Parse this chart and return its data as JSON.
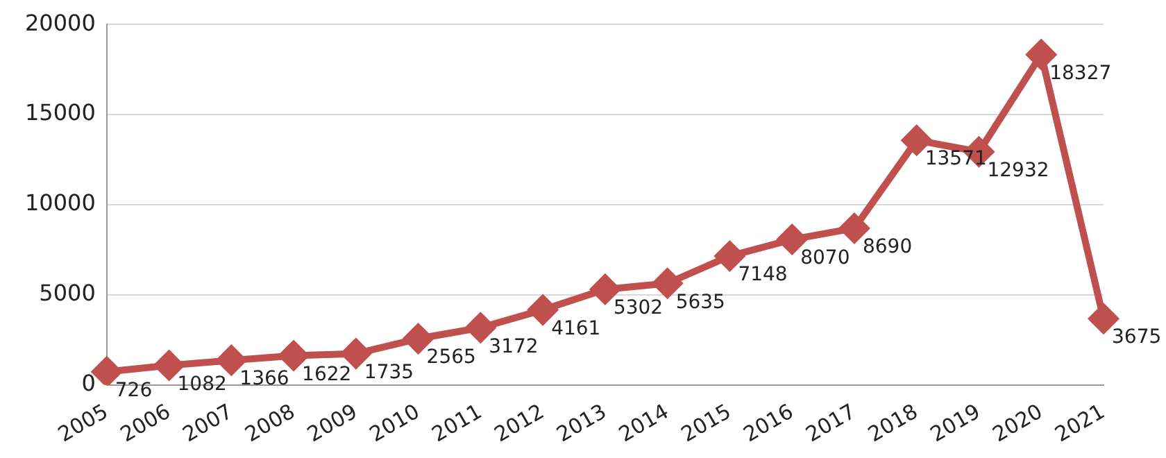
{
  "chart_data": {
    "type": "line",
    "categories": [
      "2005",
      "2006",
      "2007",
      "2008",
      "2009",
      "2010",
      "2011",
      "2012",
      "2013",
      "2014",
      "2015",
      "2016",
      "2017",
      "2018",
      "2019",
      "2020",
      "2021"
    ],
    "values": [
      726,
      1082,
      1366,
      1622,
      1735,
      2565,
      3172,
      4161,
      5302,
      5635,
      7148,
      8070,
      8690,
      13571,
      12932,
      18327,
      3675
    ],
    "color": "#c0504d",
    "ylim": [
      0,
      20000
    ],
    "yticks": [
      0,
      5000,
      10000,
      15000,
      20000
    ],
    "grid": "y",
    "legend": false,
    "marker": "diamond",
    "line_style": "solid",
    "data_labels": true
  }
}
